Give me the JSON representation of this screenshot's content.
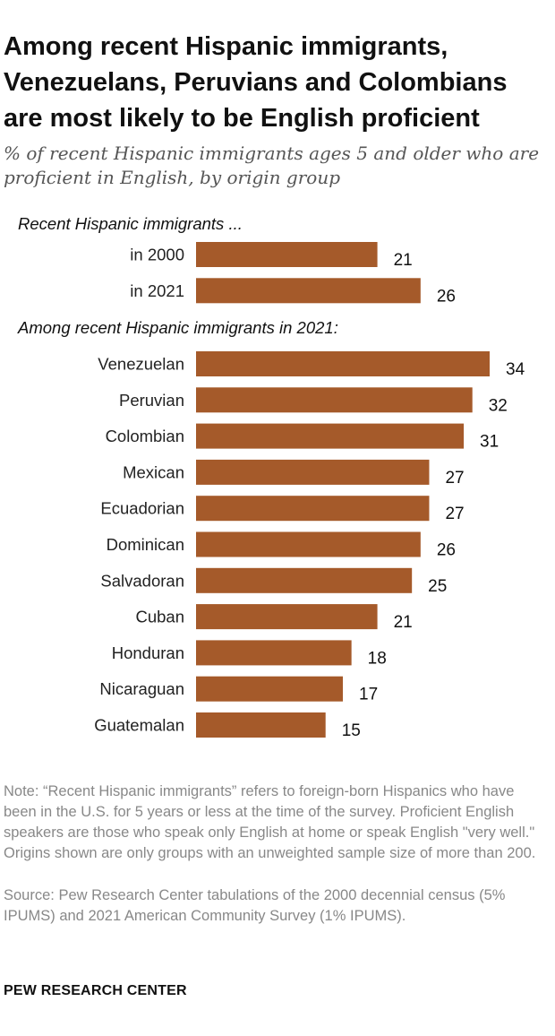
{
  "title": "Among recent Hispanic immigrants, Venezuelans, Peruvians and Colombians are most likely to be English proficient",
  "subtitle": "% of recent Hispanic immigrants ages 5 and older who are proficient in English, by origin group",
  "note": "Note: “Recent Hispanic immigrants” refers to foreign-born Hispanics who have been in the U.S. for 5 years or less at the time of the survey. Proficient English speakers are those who speak only English at home or speak English \"very well.\" Origins shown are only groups with an unweighted sample size of more than 200.",
  "source": "Source: Pew Research Center tabulations of the 2000 decennial census (5% IPUMS) and 2021 American Community Survey (1% IPUMS).",
  "organization": "PEW RESEARCH CENTER",
  "colors": {
    "bar": "#a55a2a",
    "section_label": "#111111",
    "category_label": "#222222",
    "value_label": "#111111"
  },
  "chart_data": {
    "type": "bar",
    "orientation": "horizontal",
    "unit": "%",
    "xlim": [
      0,
      34
    ],
    "grid": false,
    "groups": [
      {
        "label": "Recent Hispanic immigrants ...",
        "categories": [
          "in 2000",
          "in 2021"
        ],
        "values": [
          21,
          26
        ]
      },
      {
        "label": "Among recent Hispanic immigrants in 2021:",
        "categories": [
          "Venezuelan",
          "Peruvian",
          "Colombian",
          "Mexican",
          "Ecuadorian",
          "Dominican",
          "Salvadoran",
          "Cuban",
          "Honduran",
          "Nicaraguan",
          "Guatemalan"
        ],
        "values": [
          34,
          32,
          31,
          27,
          27,
          26,
          25,
          21,
          18,
          17,
          15
        ]
      }
    ]
  }
}
